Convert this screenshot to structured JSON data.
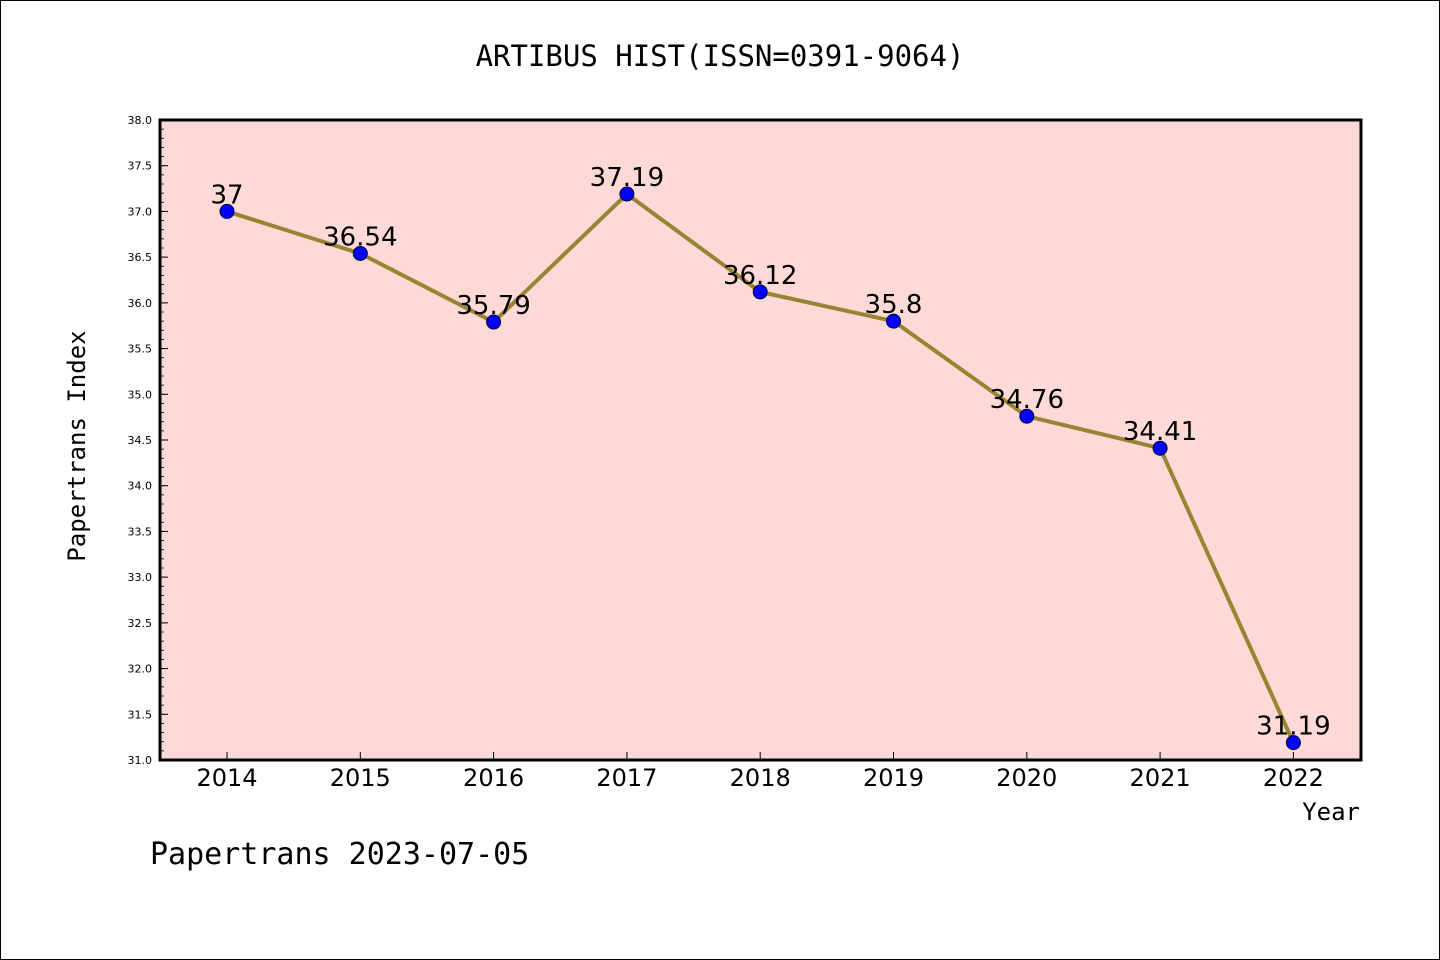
{
  "chart_data": {
    "type": "line",
    "title": "ARTIBUS HIST(ISSN=0391-9064)",
    "xlabel": "Year",
    "ylabel": "Papertrans Index",
    "footer": "Papertrans 2023-07-05",
    "categories": [
      "2014",
      "2015",
      "2016",
      "2017",
      "2018",
      "2019",
      "2020",
      "2021",
      "2022"
    ],
    "values": [
      37,
      36.54,
      35.79,
      37.19,
      36.12,
      35.8,
      34.76,
      34.41,
      31.19
    ],
    "data_labels": [
      "37",
      "36.54",
      "35.79",
      "37.19",
      "36.12",
      "35.8",
      "34.76",
      "34.41",
      "31.19"
    ],
    "ylim": [
      31.0,
      38.0
    ],
    "yticks": [
      "31.0",
      "31.5",
      "32.0",
      "32.5",
      "33.0",
      "33.5",
      "34.0",
      "34.5",
      "35.0",
      "35.5",
      "36.0",
      "36.5",
      "37.0",
      "37.5",
      "38.0"
    ],
    "grid": false,
    "colors": {
      "plot_background": "#fddad7",
      "line": "#998433",
      "marker": "#0000ff"
    }
  }
}
